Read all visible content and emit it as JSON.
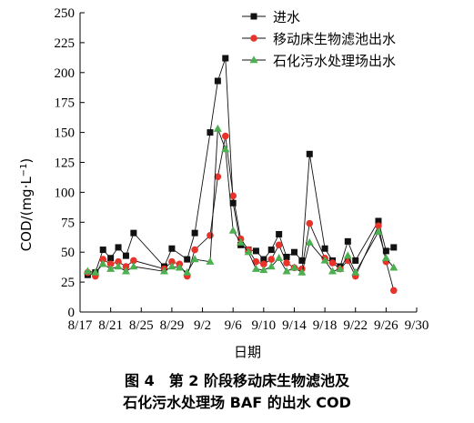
{
  "chart_data": {
    "type": "line",
    "xlabel": "日期",
    "ylabel_main": "COD/(mg·L",
    "ylabel_sup": "−1",
    "ylabel_close": ")",
    "ylim": [
      0,
      250
    ],
    "yticks": [
      0,
      25,
      50,
      75,
      100,
      125,
      150,
      175,
      200,
      225,
      250
    ],
    "xtick_labels": [
      "8/17",
      "8/21",
      "8/25",
      "8/29",
      "9/2",
      "9/6",
      "9/10",
      "9/14",
      "9/18",
      "9/22",
      "9/26",
      "9/30"
    ],
    "x_domain_days": [
      0,
      44
    ],
    "legend_position": "top-right",
    "series": [
      {
        "name": "进水",
        "marker": "square",
        "color": "#111111",
        "marker_color": "#111111",
        "points": [
          [
            1,
            31
          ],
          [
            2,
            33
          ],
          [
            3,
            52
          ],
          [
            4,
            45
          ],
          [
            5,
            54
          ],
          [
            6,
            47
          ],
          [
            7,
            66
          ],
          [
            11,
            38
          ],
          [
            12,
            53
          ],
          [
            14,
            44
          ],
          [
            15,
            66
          ],
          [
            17,
            150
          ],
          [
            18,
            193
          ],
          [
            19,
            212
          ],
          [
            20,
            91
          ],
          [
            21,
            56
          ],
          [
            22,
            52
          ],
          [
            23,
            51
          ],
          [
            24,
            44
          ],
          [
            25,
            52
          ],
          [
            26,
            65
          ],
          [
            27,
            46
          ],
          [
            28,
            50
          ],
          [
            29,
            43
          ],
          [
            30,
            132
          ],
          [
            32,
            53
          ],
          [
            33,
            43
          ],
          [
            34,
            38
          ],
          [
            35,
            59
          ],
          [
            36,
            43
          ],
          [
            39,
            76
          ],
          [
            40,
            51
          ],
          [
            41,
            54
          ]
        ]
      },
      {
        "name": "移动床生物滤池出水",
        "marker": "circle",
        "color": "#111111",
        "marker_color": "#e8332a",
        "points": [
          [
            1,
            33
          ],
          [
            2,
            30
          ],
          [
            3,
            44
          ],
          [
            4,
            40
          ],
          [
            5,
            42
          ],
          [
            6,
            38
          ],
          [
            7,
            43
          ],
          [
            11,
            36
          ],
          [
            12,
            42
          ],
          [
            13,
            40
          ],
          [
            14,
            30
          ],
          [
            15,
            52
          ],
          [
            17,
            64
          ],
          [
            18,
            113
          ],
          [
            19,
            147
          ],
          [
            20,
            97
          ],
          [
            21,
            61
          ],
          [
            22,
            52
          ],
          [
            23,
            42
          ],
          [
            24,
            40
          ],
          [
            25,
            44
          ],
          [
            26,
            56
          ],
          [
            27,
            41
          ],
          [
            28,
            37
          ],
          [
            29,
            36
          ],
          [
            30,
            74
          ],
          [
            32,
            45
          ],
          [
            33,
            41
          ],
          [
            34,
            36
          ],
          [
            35,
            43
          ],
          [
            36,
            30
          ],
          [
            39,
            72
          ],
          [
            40,
            42
          ],
          [
            41,
            18
          ]
        ]
      },
      {
        "name": "石化污水处理场出水",
        "marker": "triangle",
        "color": "#111111",
        "marker_color": "#4caf50",
        "points": [
          [
            1,
            34
          ],
          [
            2,
            33
          ],
          [
            3,
            40
          ],
          [
            4,
            36
          ],
          [
            5,
            38
          ],
          [
            6,
            34
          ],
          [
            7,
            38
          ],
          [
            11,
            34
          ],
          [
            12,
            38
          ],
          [
            13,
            37
          ],
          [
            14,
            33
          ],
          [
            15,
            44
          ],
          [
            17,
            42
          ],
          [
            18,
            153
          ],
          [
            19,
            136
          ],
          [
            20,
            68
          ],
          [
            21,
            58
          ],
          [
            22,
            50
          ],
          [
            23,
            36
          ],
          [
            24,
            35
          ],
          [
            25,
            38
          ],
          [
            26,
            45
          ],
          [
            27,
            34
          ],
          [
            28,
            37
          ],
          [
            29,
            33
          ],
          [
            30,
            58
          ],
          [
            32,
            43
          ],
          [
            33,
            34
          ],
          [
            34,
            36
          ],
          [
            35,
            47
          ],
          [
            36,
            33
          ],
          [
            39,
            67
          ],
          [
            40,
            45
          ],
          [
            41,
            37
          ]
        ]
      }
    ]
  },
  "caption": {
    "line1": "图 4　第 2 阶段移动床生物滤池及",
    "line2": "石化污水处理场 BAF 的出水 COD"
  }
}
